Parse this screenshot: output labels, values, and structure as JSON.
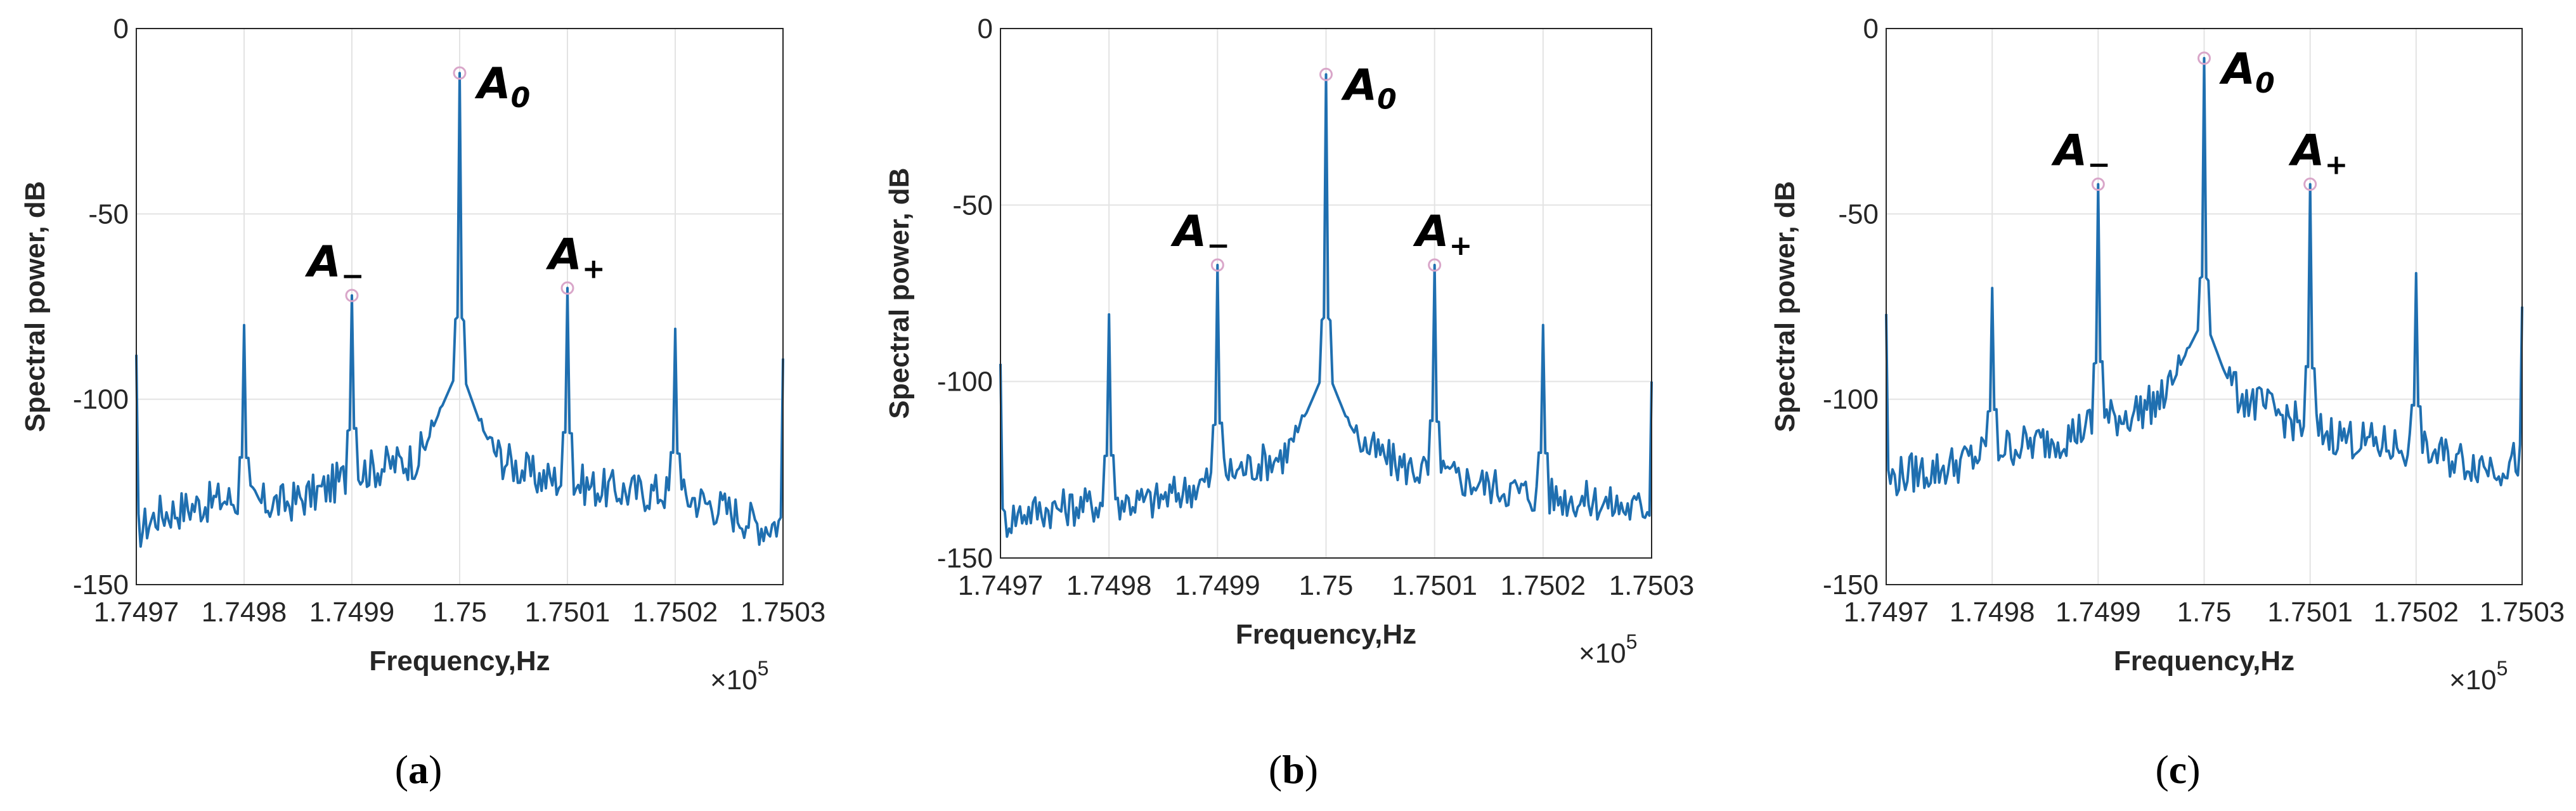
{
  "colors": {
    "line": "#1f6fb0",
    "marker": "#d9a6c9",
    "grid": "#e3e3e3",
    "axis": "#262626"
  },
  "chart_data": [
    {
      "type": "line",
      "caption": "a",
      "title": "",
      "xlabel": "Frequency,Hz",
      "ylabel": "Spectral power, dB",
      "x_exponent_base": "×10",
      "x_exponent_power": "5",
      "xlim": [
        1.7497,
        1.7503
      ],
      "ylim": [
        -150,
        0
      ],
      "xticks": [
        "1.7497",
        "1.7498",
        "1.7499",
        "1.75",
        "1.7501",
        "1.7502",
        "1.7503"
      ],
      "yticks": [
        "0",
        "-50",
        "-100",
        "-150"
      ],
      "grid": true,
      "peaks": [
        {
          "x": 1.7497,
          "y": -88
        },
        {
          "x": 1.7498,
          "y": -80
        },
        {
          "x": 1.7499,
          "y": -72
        },
        {
          "x": 1.75,
          "y": -12
        },
        {
          "x": 1.7501,
          "y": -70
        },
        {
          "x": 1.7502,
          "y": -81
        },
        {
          "x": 1.7503,
          "y": -89
        }
      ],
      "noise_profile": [
        [
          1.7497,
          -136
        ],
        [
          1.74972,
          -131
        ],
        [
          1.74975,
          -129
        ],
        [
          1.74978,
          -127
        ],
        [
          1.74981,
          -128
        ],
        [
          1.74984,
          -128
        ],
        [
          1.74987,
          -125
        ],
        [
          1.7499,
          -120
        ],
        [
          1.74993,
          -118
        ],
        [
          1.74996,
          -116
        ],
        [
          1.74998,
          -107
        ],
        [
          1.75,
          -99
        ],
        [
          1.75002,
          -110
        ],
        [
          1.75004,
          -116
        ],
        [
          1.75007,
          -121
        ],
        [
          1.7501,
          -122
        ],
        [
          1.75013,
          -124
        ],
        [
          1.75016,
          -125
        ],
        [
          1.75019,
          -125
        ],
        [
          1.75022,
          -127
        ],
        [
          1.75025,
          -130
        ],
        [
          1.75028,
          -134
        ],
        [
          1.7503,
          -133
        ]
      ],
      "markers": [
        {
          "label": "A",
          "sub": "0",
          "x": 1.75,
          "y": -12
        },
        {
          "label": "A",
          "sub": "−",
          "x": 1.7499,
          "y": -72
        },
        {
          "label": "A",
          "sub": "+",
          "x": 1.7501,
          "y": -70
        }
      ]
    },
    {
      "type": "line",
      "caption": "b",
      "title": "",
      "xlabel": "Frequency,Hz",
      "ylabel": "Spectral power, dB",
      "x_exponent_base": "×10",
      "x_exponent_power": "5",
      "xlim": [
        1.7497,
        1.7503
      ],
      "ylim": [
        -150,
        0
      ],
      "xticks": [
        "1.7497",
        "1.7498",
        "1.7499",
        "1.75",
        "1.7501",
        "1.7502",
        "1.7503"
      ],
      "yticks": [
        "0",
        "-50",
        "-100",
        "-150"
      ],
      "grid": true,
      "peaks": [
        {
          "x": 1.7497,
          "y": -95
        },
        {
          "x": 1.7498,
          "y": -81
        },
        {
          "x": 1.7499,
          "y": -67
        },
        {
          "x": 1.75,
          "y": -13
        },
        {
          "x": 1.7501,
          "y": -67
        },
        {
          "x": 1.7502,
          "y": -84
        },
        {
          "x": 1.7503,
          "y": -100
        }
      ],
      "noise_profile": [
        [
          1.7497,
          -140
        ],
        [
          1.74972,
          -137
        ],
        [
          1.74975,
          -136
        ],
        [
          1.74978,
          -135
        ],
        [
          1.74981,
          -134
        ],
        [
          1.74984,
          -134
        ],
        [
          1.74987,
          -131
        ],
        [
          1.7499,
          -127
        ],
        [
          1.74993,
          -124
        ],
        [
          1.74996,
          -121
        ],
        [
          1.74998,
          -113
        ],
        [
          1.75,
          -104
        ],
        [
          1.75002,
          -114
        ],
        [
          1.75004,
          -119
        ],
        [
          1.75007,
          -124
        ],
        [
          1.7501,
          -126
        ],
        [
          1.75013,
          -128
        ],
        [
          1.75016,
          -130
        ],
        [
          1.75019,
          -132
        ],
        [
          1.75022,
          -133
        ],
        [
          1.75025,
          -134
        ],
        [
          1.75028,
          -136
        ],
        [
          1.7503,
          -135
        ]
      ],
      "markers": [
        {
          "label": "A",
          "sub": "0",
          "x": 1.75,
          "y": -13
        },
        {
          "label": "A",
          "sub": "−",
          "x": 1.7499,
          "y": -67
        },
        {
          "label": "A",
          "sub": "+",
          "x": 1.7501,
          "y": -67
        }
      ]
    },
    {
      "type": "line",
      "caption": "c",
      "title": "",
      "xlabel": "Frequency,Hz",
      "ylabel": "Spectral power, dB",
      "x_exponent_base": "×10",
      "x_exponent_power": "5",
      "xlim": [
        1.7497,
        1.7503
      ],
      "ylim": [
        -150,
        0
      ],
      "xticks": [
        "1.7497",
        "1.7498",
        "1.7499",
        "1.75",
        "1.7501",
        "1.7502",
        "1.7503"
      ],
      "yticks": [
        "0",
        "-50",
        "-100",
        "-150"
      ],
      "grid": true,
      "peaks": [
        {
          "x": 1.7497,
          "y": -77
        },
        {
          "x": 1.7498,
          "y": -70
        },
        {
          "x": 1.7499,
          "y": -42
        },
        {
          "x": 1.75,
          "y": -8
        },
        {
          "x": 1.7501,
          "y": -42
        },
        {
          "x": 1.7502,
          "y": -66
        },
        {
          "x": 1.7503,
          "y": -75
        }
      ],
      "noise_profile": [
        [
          1.7497,
          -122
        ],
        [
          1.74972,
          -120
        ],
        [
          1.74975,
          -119
        ],
        [
          1.74978,
          -116
        ],
        [
          1.74981,
          -113
        ],
        [
          1.74984,
          -112
        ],
        [
          1.74987,
          -110
        ],
        [
          1.7499,
          -106
        ],
        [
          1.74993,
          -104
        ],
        [
          1.74996,
          -100
        ],
        [
          1.74998,
          -92
        ],
        [
          1.75,
          -86
        ],
        [
          1.75002,
          -96
        ],
        [
          1.75004,
          -100
        ],
        [
          1.75007,
          -104
        ],
        [
          1.7501,
          -108
        ],
        [
          1.75013,
          -110
        ],
        [
          1.75016,
          -112
        ],
        [
          1.75019,
          -113
        ],
        [
          1.75022,
          -115
        ],
        [
          1.75025,
          -117
        ],
        [
          1.75028,
          -118
        ],
        [
          1.7503,
          -116
        ]
      ],
      "markers": [
        {
          "label": "A",
          "sub": "0",
          "x": 1.75,
          "y": -8
        },
        {
          "label": "A",
          "sub": "−",
          "x": 1.7499,
          "y": -42
        },
        {
          "label": "A",
          "sub": "+",
          "x": 1.7501,
          "y": -42
        }
      ]
    }
  ]
}
